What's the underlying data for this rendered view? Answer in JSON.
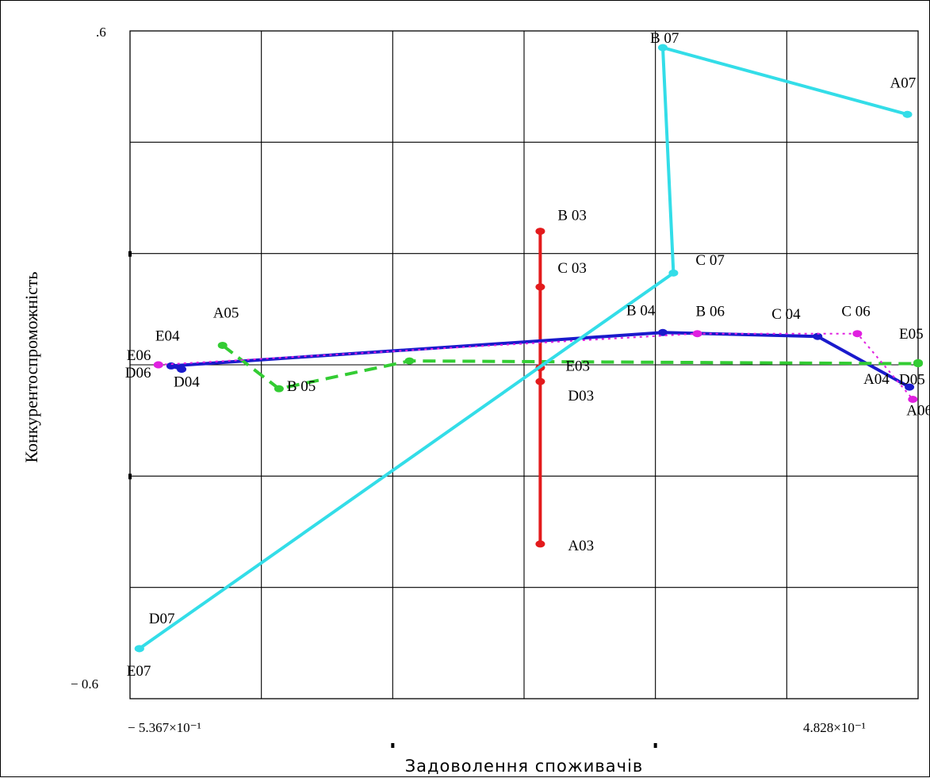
{
  "chart_data": {
    "type": "line",
    "title": "",
    "xlabel": "Задоволення споживачів",
    "ylabel": "Конкурентоспроможність",
    "xlim": [
      -0.5367,
      0.4828
    ],
    "ylim": [
      -0.6,
      0.6
    ],
    "x_tick_labels": {
      "min": "− 5.367×10⁻¹",
      "max": "4.828×10⁻¹"
    },
    "y_tick_labels": {
      "max": ".6",
      "min": "− 0.6"
    },
    "grid": true,
    "legend": "none",
    "series": [
      {
        "color": "#e31a1c",
        "dash": "solid",
        "points": [
          {
            "label": "A03",
            "x": -0.006,
            "y": -0.322
          },
          {
            "label": "D03",
            "x": -0.006,
            "y": -0.03
          },
          {
            "label": "E03",
            "x": -0.006,
            "y": -0.005
          },
          {
            "label": "C 03",
            "x": -0.006,
            "y": 0.14
          },
          {
            "label": "B 03",
            "x": -0.006,
            "y": 0.24
          }
        ]
      },
      {
        "color": "#1a1acc",
        "dash": "solid",
        "points": [
          {
            "label": "A04",
            "x": 0.4716,
            "y": -0.04
          },
          {
            "label": "C 04",
            "x": 0.3528,
            "y": 0.051
          },
          {
            "label": "B 04",
            "x": 0.1525,
            "y": 0.058
          },
          {
            "label": "E04",
            "x": -0.4835,
            "y": -0.002
          },
          {
            "label": "D04",
            "x": -0.47,
            "y": -0.008
          }
        ]
      },
      {
        "color": "#33cc33",
        "dash": "dashed",
        "points": [
          {
            "label": "A05",
            "x": -0.417,
            "y": 0.035
          },
          {
            "label": "B 05",
            "x": -0.344,
            "y": -0.043
          },
          {
            "label": "",
            "x": -0.1752,
            "y": 0.007
          },
          {
            "label": "D05",
            "x": 0.4828,
            "y": 0.002
          },
          {
            "label": "E05",
            "x": 0.4828,
            "y": 0.004
          }
        ]
      },
      {
        "color": "#e020e0",
        "dash": "dotted",
        "points": [
          {
            "label": "E06",
            "x": -0.5,
            "y": 0.0
          },
          {
            "label": "D06",
            "x": -0.5,
            "y": 0.0
          },
          {
            "label": "B 06",
            "x": 0.1972,
            "y": 0.056
          },
          {
            "label": "C 06",
            "x": 0.4042,
            "y": 0.056
          },
          {
            "label": "A06",
            "x": 0.4759,
            "y": -0.062
          }
        ]
      },
      {
        "color": "#33dde8",
        "dash": "solid",
        "points": [
          {
            "label": "E07",
            "x": -0.5246,
            "y": -0.51
          },
          {
            "label": "D07",
            "x": -0.5246,
            "y": -0.51
          },
          {
            "label": "C 07",
            "x": 0.1663,
            "y": 0.165
          },
          {
            "label": "B 07",
            "x": 0.1525,
            "y": 0.57
          },
          {
            "label": "A07",
            "x": 0.469,
            "y": 0.45
          }
        ]
      }
    ]
  }
}
